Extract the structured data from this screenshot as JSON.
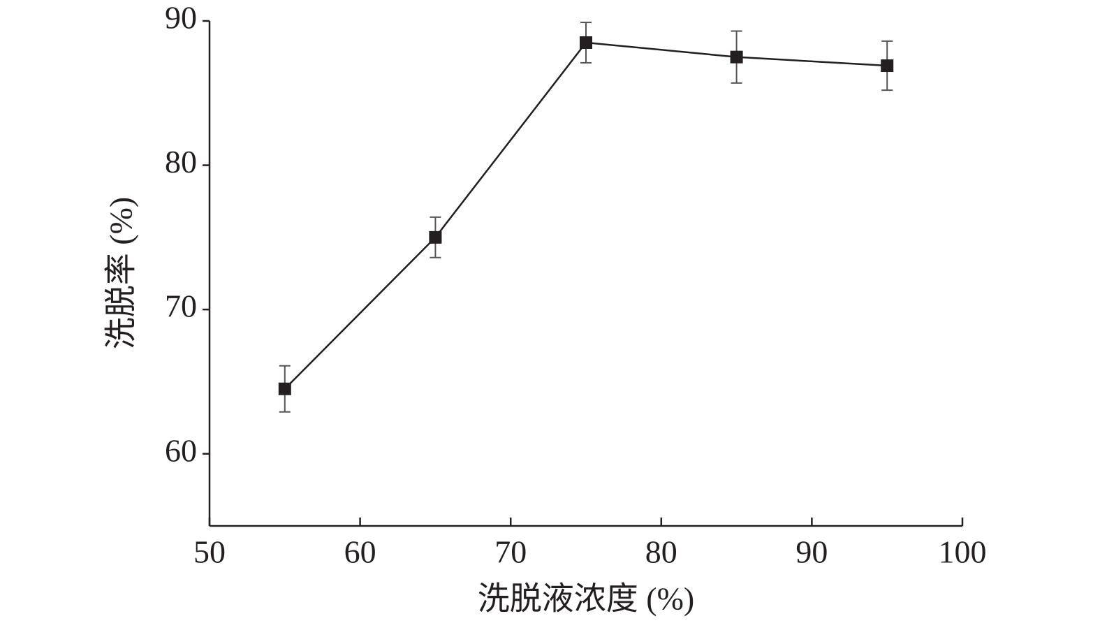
{
  "chart_data": {
    "type": "line",
    "x_label": "洗脱液浓度 (%)",
    "y_label": "洗脱率 (%)",
    "x": [
      55,
      65,
      75,
      85,
      95
    ],
    "series": [
      {
        "color": "#231f20",
        "values": [
          64.5,
          75.0,
          88.5,
          87.5,
          86.9
        ],
        "errors": [
          1.6,
          1.4,
          1.4,
          1.8,
          1.7
        ]
      }
    ],
    "xlim": [
      50,
      100
    ],
    "xticks": [
      50,
      60,
      70,
      80,
      90,
      100
    ],
    "ylim": [
      55,
      90
    ],
    "yticks": [
      60,
      70,
      80,
      90
    ]
  }
}
